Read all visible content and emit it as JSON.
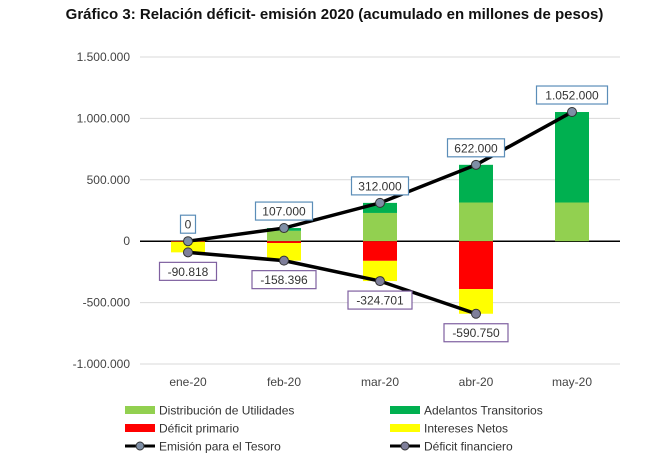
{
  "chart_data": {
    "type": "bar",
    "title": "Gráfico 3: Relación déficit- emisión 2020 (acumulado en millones de pesos)",
    "xlabel": "",
    "ylabel": "",
    "categories": [
      "ene-20",
      "feb-20",
      "mar-20",
      "abr-20",
      "may-20"
    ],
    "ylim": [
      -1000000,
      1500000
    ],
    "yticks": [
      1500000,
      1000000,
      500000,
      0,
      -500000,
      -1000000
    ],
    "ytick_labels": [
      "1.500.000",
      "1.000.000",
      "500.000",
      "0",
      "-500.000",
      "-1.000.000"
    ],
    "grid": true,
    "legend_position": "bottom",
    "stacked_series": [
      {
        "name": "Distribución de Utilidades",
        "color": "#92D050",
        "values": [
          0,
          85000,
          230000,
          315000,
          315000
        ]
      },
      {
        "name": "Adelantos Transitorios",
        "color": "#00B050",
        "values": [
          0,
          22000,
          82000,
          307000,
          737000
        ]
      },
      {
        "name": "Déficit primario",
        "color": "#FF0000",
        "values": [
          -5000,
          -15000,
          -160000,
          -390000,
          0
        ]
      },
      {
        "name": "Intereses Netos",
        "color": "#FFFF00",
        "values": [
          -85818,
          -143396,
          -164701,
          -200750,
          0
        ]
      }
    ],
    "line_series": [
      {
        "name": "Emisión para el Tesoro",
        "color": "#000000",
        "marker": "#7F8FA6",
        "values": [
          0,
          107000,
          312000,
          622000,
          1052000
        ],
        "labels": [
          "0",
          "107.000",
          "312.000",
          "622.000",
          "1.052.000"
        ],
        "label_border": "#5B8DB8"
      },
      {
        "name": "Déficit financiero",
        "color": "#000000",
        "marker": "#7F7F9A",
        "values": [
          -90818,
          -158396,
          -324701,
          -590750,
          null
        ],
        "labels": [
          "-90.818",
          "-158.396",
          "-324.701",
          "-590.750",
          null
        ],
        "label_border": "#7F60A0"
      }
    ]
  }
}
